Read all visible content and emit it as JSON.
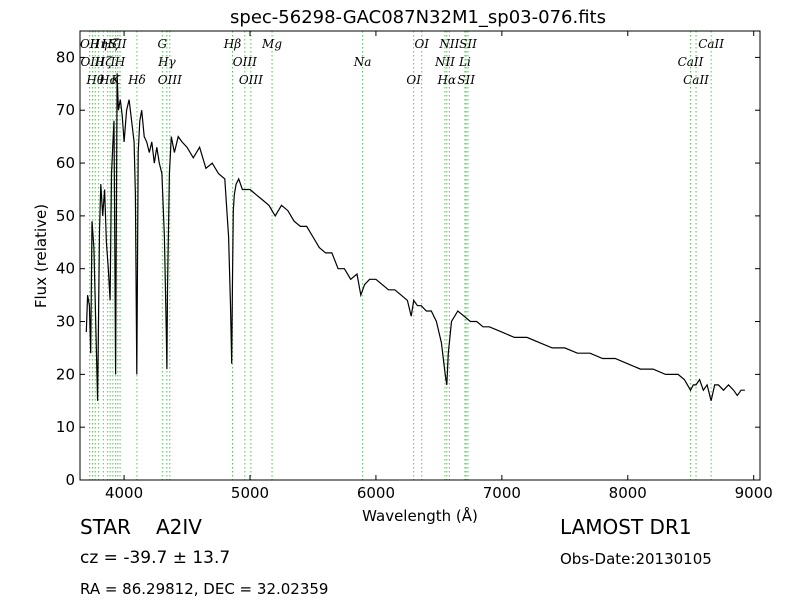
{
  "chart_data": {
    "type": "line",
    "title": "spec-56298-GAC087N32M1_sp03-076.fits",
    "xlabel": "Wavelength (Å)",
    "ylabel": "Flux (relative)",
    "xlim": [
      3650,
      9050
    ],
    "ylim": [
      0,
      85
    ],
    "xticks": [
      4000,
      5000,
      6000,
      7000,
      8000,
      9000
    ],
    "yticks": [
      0,
      10,
      20,
      30,
      40,
      50,
      60,
      70,
      80
    ],
    "grid": false,
    "x": [
      3700,
      3710,
      3725,
      3735,
      3745,
      3760,
      3775,
      3790,
      3805,
      3815,
      3830,
      3845,
      3860,
      3875,
      3889,
      3900,
      3910,
      3920,
      3933,
      3945,
      3955,
      3970,
      3985,
      4000,
      4020,
      4040,
      4060,
      4080,
      4090,
      4101,
      4112,
      4125,
      4140,
      4160,
      4180,
      4200,
      4220,
      4240,
      4260,
      4280,
      4300,
      4320,
      4335,
      4340,
      4345,
      4360,
      4375,
      4400,
      4430,
      4460,
      4500,
      4550,
      4600,
      4650,
      4700,
      4750,
      4800,
      4830,
      4845,
      4855,
      4861,
      4867,
      4875,
      4890,
      4910,
      4940,
      4970,
      5000,
      5050,
      5100,
      5150,
      5200,
      5250,
      5300,
      5350,
      5400,
      5450,
      5500,
      5550,
      5600,
      5650,
      5700,
      5750,
      5800,
      5850,
      5880,
      5910,
      5950,
      6000,
      6050,
      6100,
      6150,
      6200,
      6250,
      6280,
      6300,
      6330,
      6360,
      6400,
      6440,
      6480,
      6520,
      6550,
      6563,
      6575,
      6600,
      6650,
      6700,
      6750,
      6800,
      6850,
      6900,
      7000,
      7100,
      7200,
      7300,
      7400,
      7500,
      7600,
      7700,
      7800,
      7900,
      8000,
      8100,
      8200,
      8300,
      8400,
      8450,
      8498,
      8520,
      8542,
      8570,
      8600,
      8630,
      8662,
      8690,
      8720,
      8760,
      8800,
      8840,
      8870,
      8900,
      8930
    ],
    "y": [
      28,
      35,
      33,
      24,
      49,
      44,
      30,
      15,
      47,
      56,
      50,
      55,
      45,
      40,
      34,
      58,
      63,
      68,
      20,
      77,
      70,
      72,
      69,
      64,
      70,
      72,
      68,
      64,
      54,
      20,
      62,
      68,
      70,
      65,
      64,
      62,
      64,
      60,
      63,
      60,
      58,
      46,
      28,
      21,
      36,
      58,
      65,
      62,
      65,
      64,
      63,
      61,
      63,
      59,
      60,
      58,
      57,
      46,
      33,
      22,
      38,
      51,
      54,
      56,
      57,
      55,
      55,
      55,
      54,
      53,
      52,
      50,
      52,
      51,
      49,
      48,
      48,
      46,
      44,
      43,
      43,
      40,
      40,
      38,
      39,
      35,
      37,
      38,
      38,
      37,
      36,
      36,
      35,
      34,
      31,
      34,
      33,
      33,
      32,
      32,
      30,
      26,
      20,
      18,
      24,
      30,
      32,
      31,
      30,
      30,
      29,
      29,
      28,
      27,
      27,
      26,
      25,
      25,
      24,
      24,
      23,
      23,
      22,
      21,
      21,
      20,
      20,
      19,
      17,
      18,
      18,
      19,
      17,
      18,
      15,
      18,
      18,
      17,
      18,
      17,
      16,
      17,
      17
    ],
    "lines": [
      {
        "wl": 3727,
        "label": "OII"
      },
      {
        "wl": 3750,
        "label": "OIII"
      },
      {
        "wl": 3771,
        "label": "Hθ"
      },
      {
        "wl": 3798,
        "label": "Hη"
      },
      {
        "wl": 3835,
        "label": "Hζ"
      },
      {
        "wl": 3870,
        "label": "Hc"
      },
      {
        "wl": 3889,
        "label": "Hζ"
      },
      {
        "wl": 3911,
        "label": "I"
      },
      {
        "wl": 3933,
        "label": "K"
      },
      {
        "wl": 3950,
        "label": "SII"
      },
      {
        "wl": 3968,
        "label": "H"
      },
      {
        "wl": 4102,
        "label": "Hδ"
      },
      {
        "wl": 4304,
        "label": "G"
      },
      {
        "wl": 4340,
        "label": "Hγ"
      },
      {
        "wl": 4363,
        "label": "OIII"
      },
      {
        "wl": 4861,
        "label": "Hβ"
      },
      {
        "wl": 4959,
        "label": "OIII"
      },
      {
        "wl": 5007,
        "label": "OIII"
      },
      {
        "wl": 5175,
        "label": "Mg"
      },
      {
        "wl": 5894,
        "label": "Na"
      },
      {
        "wl": 6300,
        "label": "OI"
      },
      {
        "wl": 6364,
        "label": "OI"
      },
      {
        "wl": 6548,
        "label": "NII"
      },
      {
        "wl": 6563,
        "label": "Hα"
      },
      {
        "wl": 6583,
        "label": "NII"
      },
      {
        "wl": 6707,
        "label": "Li"
      },
      {
        "wl": 6716,
        "label": "SII"
      },
      {
        "wl": 6731,
        "label": "SII"
      },
      {
        "wl": 8498,
        "label": "CaII"
      },
      {
        "wl": 8542,
        "label": "CaII"
      },
      {
        "wl": 8662,
        "label": "CaII"
      }
    ]
  },
  "info": {
    "object_class": "STAR",
    "subclass": "A2IV",
    "cz": "cz = -39.7  ± 13.7",
    "coords": "RA = 86.29812, DEC = 32.02359",
    "survey": "LAMOST DR1",
    "obs_date": "Obs-Date:20130105"
  },
  "colors": {
    "spectrum": "#000000",
    "line_marker": "#5bbf5b"
  }
}
